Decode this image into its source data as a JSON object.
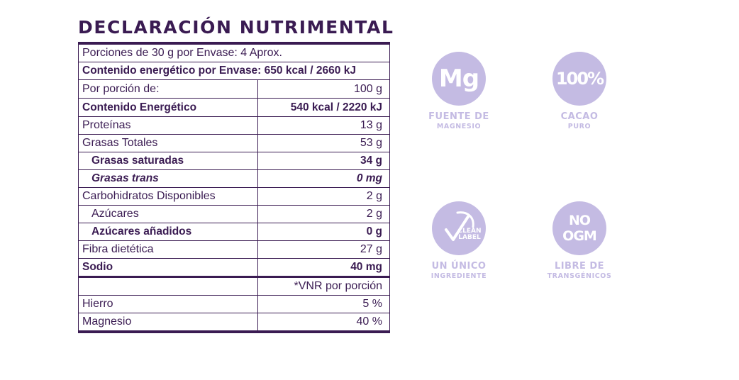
{
  "title": "DECLARACIÓN NUTRIMENTAL",
  "table": {
    "servings": "Porciones de 30 g por Envase: 4 Aprox.",
    "energy_per_package": "Contenido energético por Envase: 650 kcal / 2660 kJ",
    "per_portion_label": "Por porción de:",
    "per_portion_value": "100 g",
    "energy_label": "Contenido Energético",
    "energy_value": "540 kcal / 2220 kJ",
    "rows": [
      {
        "label": "Proteínas",
        "value": "13 g"
      },
      {
        "label": "Grasas Totales",
        "value": "53 g"
      },
      {
        "label": "Grasas saturadas",
        "value": "34 g"
      },
      {
        "label": "Grasas trans",
        "value": "0 mg"
      },
      {
        "label": "Carbohidratos Disponibles",
        "value": "2 g"
      },
      {
        "label": "Azúcares",
        "value": "2 g"
      },
      {
        "label": "Azúcares añadidos",
        "value": "0 g"
      },
      {
        "label": "Fibra dietética",
        "value": "27 g"
      },
      {
        "label": "Sodio",
        "value": "40 mg"
      }
    ],
    "vnr_header": "*VNR por porción",
    "minerals": [
      {
        "label": "Hierro",
        "value": "5 %"
      },
      {
        "label": "Magnesio",
        "value": "40 %"
      }
    ]
  },
  "badges": [
    {
      "symbol": "Mg",
      "line1": "FUENTE DE",
      "line2": "MAGNESIO",
      "icon": "magnesium-icon"
    },
    {
      "symbol": "100%",
      "line1": "CACAO",
      "line2": "PURO",
      "icon": "percent-100-icon"
    },
    {
      "symbol": "CLEAN LABEL",
      "line1": "UN ÚNICO",
      "line2": "INGREDIENTE",
      "icon": "clean-label-leaf-icon"
    },
    {
      "symbol": "NO OGM",
      "line1": "LIBRE DE",
      "line2": "TRANSGÉNICOS",
      "icon": "no-ogm-icon"
    }
  ],
  "colors": {
    "primary": "#3a1b52",
    "badge": "#c4bbe3"
  }
}
